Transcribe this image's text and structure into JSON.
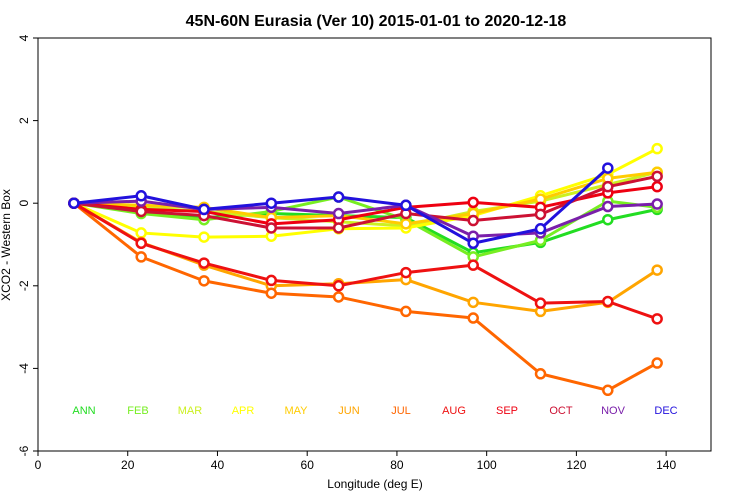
{
  "chart_data": {
    "type": "line",
    "title": "45N-60N Eurasia (Ver 10)   2015-01-01 to 2020-12-18",
    "xlabel": "Longitude (deg E)",
    "ylabel": "XCO2 - Western Box",
    "xlim": [
      0,
      150
    ],
    "ylim": [
      -6,
      4
    ],
    "xticks": [
      0,
      20,
      40,
      60,
      80,
      100,
      120,
      140
    ],
    "yticks": [
      -6,
      -4,
      -2,
      0,
      2,
      4
    ],
    "grid": false,
    "legend_placement": "bottom, inside plot as a row of colored month labels",
    "series": [
      {
        "name": "ANN",
        "color": "#22dd22",
        "x": [
          8,
          23,
          37,
          52,
          67,
          82,
          97,
          112,
          127,
          138
        ],
        "y": [
          0.0,
          -0.2,
          -0.35,
          -0.25,
          -0.3,
          -0.35,
          -1.2,
          -0.95,
          -0.4,
          -0.15
        ]
      },
      {
        "name": "FEB",
        "color": "#77ee22",
        "x": [
          8,
          23,
          37,
          52,
          67,
          82,
          97,
          112,
          127,
          138
        ],
        "y": [
          0.0,
          -0.25,
          -0.4,
          -0.2,
          0.15,
          -0.4,
          -1.3,
          -0.9,
          0.05,
          -0.1
        ]
      },
      {
        "name": "MAR",
        "color": "#ccf022",
        "x": [
          8,
          23,
          37,
          52,
          67,
          82,
          97,
          112,
          127,
          138
        ],
        "y": [
          0.0,
          -0.1,
          -0.2,
          -0.35,
          -0.45,
          -0.55,
          -0.2,
          0.05,
          0.45,
          0.75
        ]
      },
      {
        "name": "APR",
        "color": "#ffff00",
        "x": [
          8,
          23,
          37,
          52,
          67,
          82,
          97,
          112,
          127,
          138
        ],
        "y": [
          0.0,
          -0.72,
          -0.82,
          -0.8,
          -0.62,
          -0.6,
          -0.3,
          0.18,
          0.7,
          1.32
        ]
      },
      {
        "name": "MAY",
        "color": "#ffcc00",
        "x": [
          8,
          23,
          37,
          52,
          67,
          82,
          97,
          112,
          127,
          138
        ],
        "y": [
          0.0,
          -0.05,
          -0.1,
          -0.35,
          -0.3,
          -0.5,
          -0.25,
          0.1,
          0.6,
          0.75
        ]
      },
      {
        "name": "JUN",
        "color": "#ffa500",
        "x": [
          8,
          23,
          37,
          52,
          67,
          82,
          97,
          112,
          127,
          138
        ],
        "y": [
          0.0,
          -0.95,
          -1.5,
          -2.0,
          -1.95,
          -1.85,
          -2.4,
          -2.62,
          -2.4,
          -1.62
        ]
      },
      {
        "name": "JUL",
        "color": "#ff6600",
        "x": [
          8,
          23,
          37,
          52,
          67,
          82,
          97,
          112,
          127,
          138
        ],
        "y": [
          0.0,
          -1.3,
          -1.88,
          -2.18,
          -2.27,
          -2.62,
          -2.78,
          -4.13,
          -4.53,
          -3.87
        ]
      },
      {
        "name": "AUG",
        "color": "#ee1111",
        "x": [
          8,
          23,
          37,
          52,
          67,
          82,
          97,
          112,
          127,
          138
        ],
        "y": [
          0.0,
          -0.97,
          -1.45,
          -1.87,
          -2.0,
          -1.68,
          -1.5,
          -2.42,
          -2.38,
          -2.8
        ]
      },
      {
        "name": "SEP",
        "color": "#ee0011",
        "x": [
          8,
          23,
          37,
          52,
          67,
          82,
          97,
          112,
          127,
          138
        ],
        "y": [
          0.0,
          -0.15,
          -0.2,
          -0.5,
          -0.4,
          -0.1,
          0.02,
          -0.1,
          0.25,
          0.4
        ]
      },
      {
        "name": "OCT",
        "color": "#cc1133",
        "x": [
          8,
          23,
          37,
          52,
          67,
          82,
          97,
          112,
          127,
          138
        ],
        "y": [
          0.0,
          -0.2,
          -0.3,
          -0.6,
          -0.6,
          -0.25,
          -0.42,
          -0.27,
          0.4,
          0.65
        ]
      },
      {
        "name": "NOV",
        "color": "#7a1faa",
        "x": [
          8,
          23,
          37,
          52,
          67,
          82,
          97,
          112,
          127,
          138
        ],
        "y": [
          0.0,
          0.05,
          -0.15,
          -0.1,
          -0.25,
          -0.05,
          -0.8,
          -0.72,
          -0.08,
          -0.02
        ]
      },
      {
        "name": "DEC",
        "color": "#2211dd",
        "x": [
          8,
          23,
          37,
          52,
          67,
          82,
          97,
          112,
          127
        ],
        "y": [
          0.0,
          0.18,
          -0.15,
          0.0,
          0.15,
          -0.05,
          -0.97,
          -0.62,
          0.85
        ]
      }
    ]
  }
}
